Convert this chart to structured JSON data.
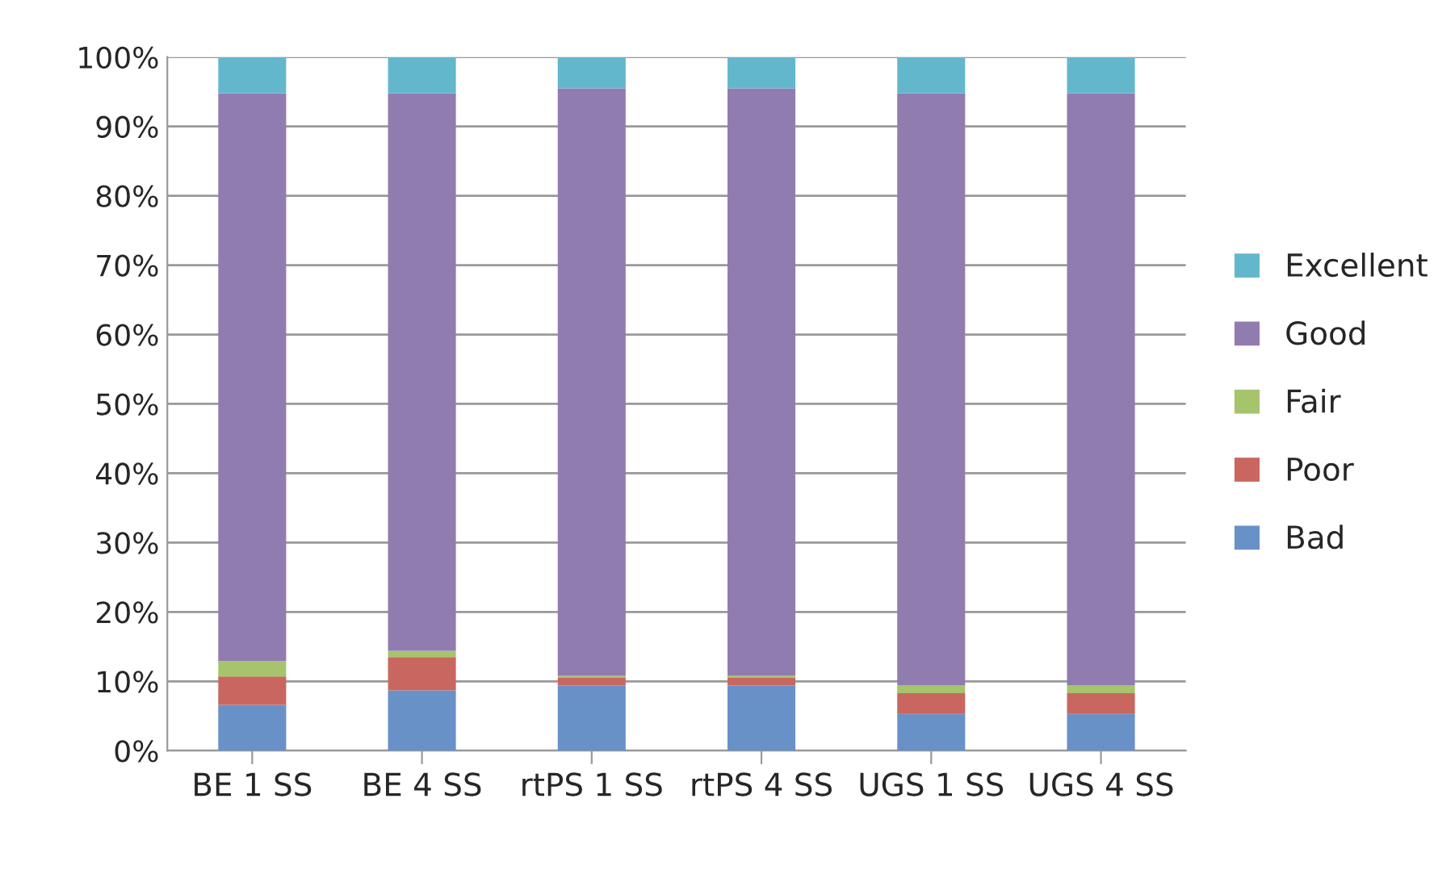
{
  "chart_data": {
    "type": "bar",
    "stacked": true,
    "categories": [
      "BE 1 SS",
      "BE 4 SS",
      "rtPS 1 SS",
      "rtPS 4 SS",
      "UGS 1 SS",
      "UGS 4 SS"
    ],
    "series": [
      {
        "name": "Bad",
        "color": "#6891c8",
        "values": [
          6.6,
          8.7,
          9.4,
          9.4,
          5.3,
          5.3
        ]
      },
      {
        "name": "Poor",
        "color": "#c9665f",
        "values": [
          4.1,
          4.8,
          1.1,
          1.1,
          3.0,
          3.0
        ]
      },
      {
        "name": "Fair",
        "color": "#a6c46c",
        "values": [
          2.2,
          0.9,
          0.3,
          0.3,
          1.1,
          1.1
        ]
      },
      {
        "name": "Good",
        "color": "#917cb0",
        "values": [
          81.9,
          80.4,
          84.7,
          84.7,
          85.4,
          85.4
        ]
      },
      {
        "name": "Excellent",
        "color": "#63b7cd",
        "values": [
          5.2,
          5.2,
          4.5,
          4.5,
          5.2,
          5.2
        ]
      }
    ],
    "ylim": [
      0,
      100
    ],
    "yticks": [
      {
        "value": 0,
        "label": "0%"
      },
      {
        "value": 10,
        "label": "10%"
      },
      {
        "value": 20,
        "label": "20%"
      },
      {
        "value": 30,
        "label": "30%"
      },
      {
        "value": 40,
        "label": "40%"
      },
      {
        "value": 50,
        "label": "50%"
      },
      {
        "value": 60,
        "label": "60%"
      },
      {
        "value": 70,
        "label": "70%"
      },
      {
        "value": 80,
        "label": "80%"
      },
      {
        "value": 90,
        "label": "90%"
      },
      {
        "value": 100,
        "label": "100%"
      }
    ],
    "grid": "y",
    "legend": "right"
  }
}
